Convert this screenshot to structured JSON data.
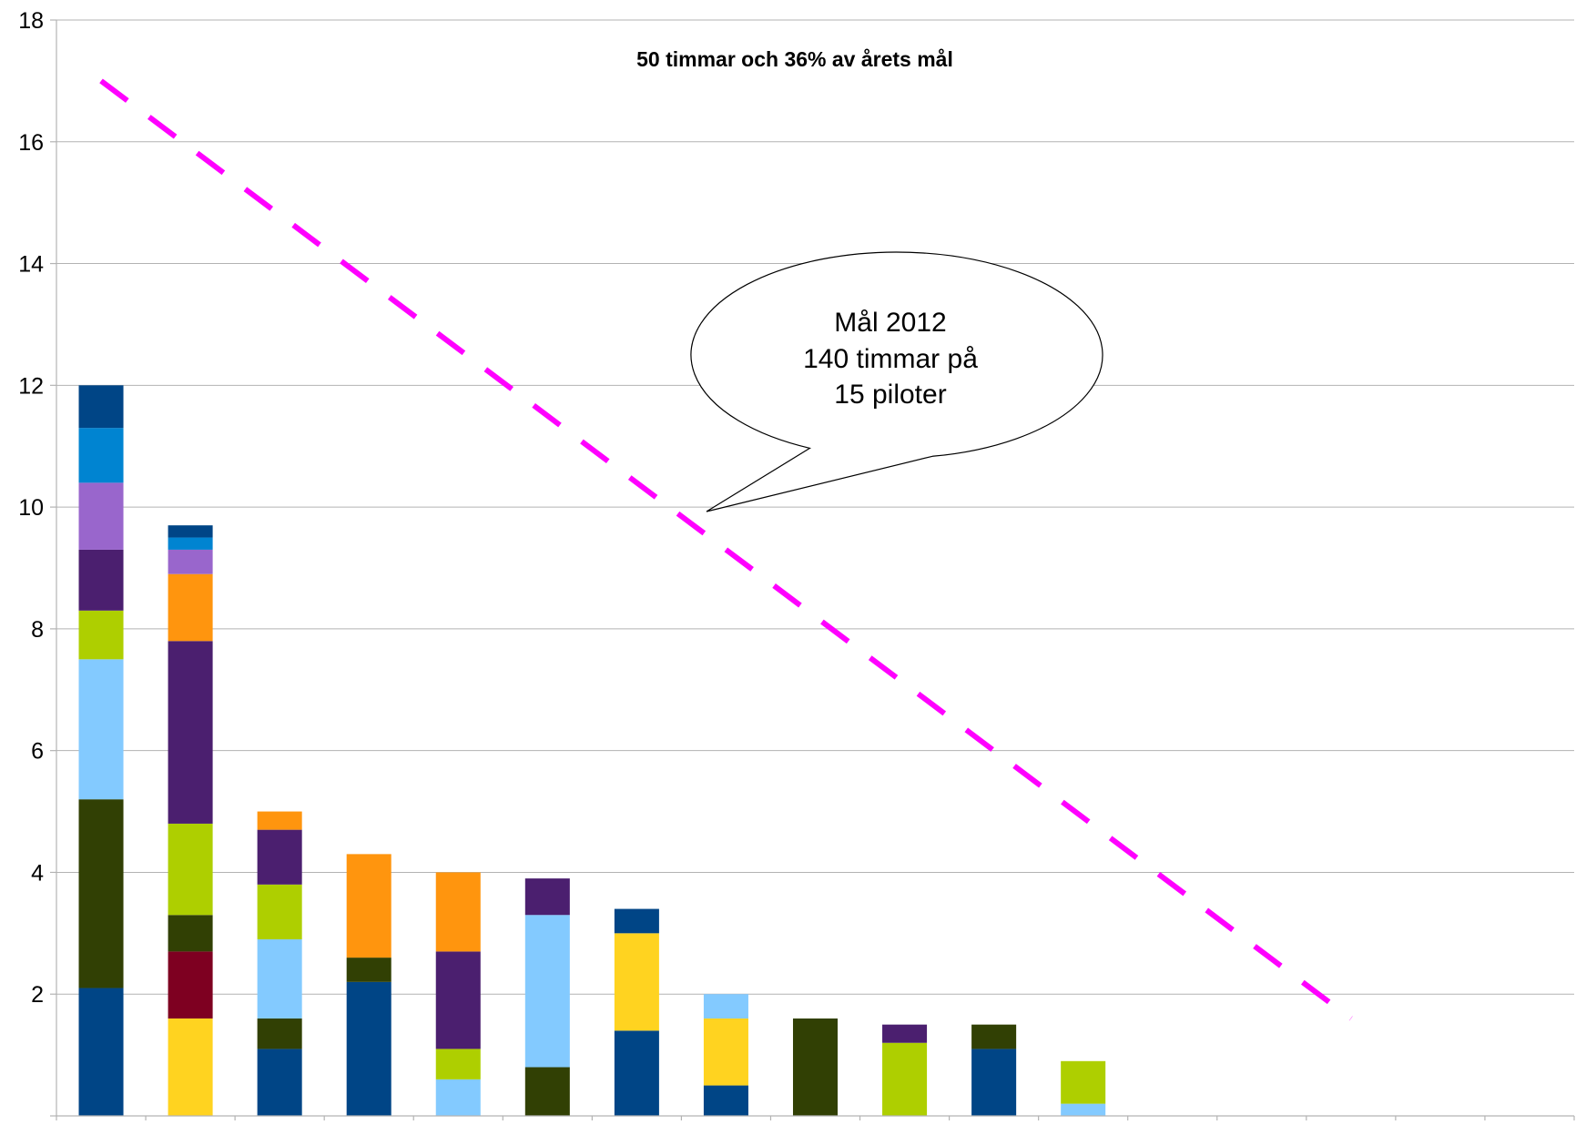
{
  "chart_data": {
    "type": "bar",
    "stacked": true,
    "title": "50 timmar och 36% av årets mål",
    "xlabel": "",
    "ylabel": "",
    "ylim": [
      0,
      18
    ],
    "yticks": [
      2,
      4,
      6,
      8,
      10,
      12,
      14,
      16,
      18
    ],
    "grid": true,
    "legend": "none",
    "category_count": 17,
    "bars": [
      {
        "total": 12.0,
        "segments": [
          {
            "value": 2.1,
            "color": "#004586"
          },
          {
            "value": 3.1,
            "color": "#314004"
          },
          {
            "value": 2.3,
            "color": "#83CAFF"
          },
          {
            "value": 0.8,
            "color": "#AECF00"
          },
          {
            "value": 1.0,
            "color": "#4B1F6F"
          },
          {
            "value": 1.1,
            "color": "#9966CC"
          },
          {
            "value": 0.9,
            "color": "#0084D1"
          },
          {
            "value": 0.7,
            "color": "#004586"
          }
        ]
      },
      {
        "total": 9.7,
        "segments": [
          {
            "value": 1.6,
            "color": "#FFD320"
          },
          {
            "value": 1.1,
            "color": "#7E0021"
          },
          {
            "value": 0.6,
            "color": "#314004"
          },
          {
            "value": 1.5,
            "color": "#AECF00"
          },
          {
            "value": 3.0,
            "color": "#4B1F6F"
          },
          {
            "value": 1.1,
            "color": "#FF950E"
          },
          {
            "value": 0.4,
            "color": "#9966CC"
          },
          {
            "value": 0.2,
            "color": "#0084D1"
          },
          {
            "value": 0.2,
            "color": "#004586"
          }
        ]
      },
      {
        "total": 5.0,
        "segments": [
          {
            "value": 1.1,
            "color": "#004586"
          },
          {
            "value": 0.5,
            "color": "#314004"
          },
          {
            "value": 1.3,
            "color": "#83CAFF"
          },
          {
            "value": 0.9,
            "color": "#AECF00"
          },
          {
            "value": 0.9,
            "color": "#4B1F6F"
          },
          {
            "value": 0.3,
            "color": "#FF950E"
          }
        ]
      },
      {
        "total": 4.3,
        "segments": [
          {
            "value": 2.2,
            "color": "#004586"
          },
          {
            "value": 0.4,
            "color": "#314004"
          },
          {
            "value": 1.7,
            "color": "#FF950E"
          }
        ]
      },
      {
        "total": 4.0,
        "segments": [
          {
            "value": 0.6,
            "color": "#83CAFF"
          },
          {
            "value": 0.5,
            "color": "#AECF00"
          },
          {
            "value": 1.6,
            "color": "#4B1F6F"
          },
          {
            "value": 1.3,
            "color": "#FF950E"
          }
        ]
      },
      {
        "total": 3.9,
        "segments": [
          {
            "value": 0.8,
            "color": "#314004"
          },
          {
            "value": 2.5,
            "color": "#83CAFF"
          },
          {
            "value": 0.6,
            "color": "#4B1F6F"
          }
        ]
      },
      {
        "total": 3.4,
        "segments": [
          {
            "value": 1.4,
            "color": "#004586"
          },
          {
            "value": 1.6,
            "color": "#FFD320"
          },
          {
            "value": 0.4,
            "color": "#004586"
          }
        ]
      },
      {
        "total": 2.0,
        "segments": [
          {
            "value": 0.5,
            "color": "#004586"
          },
          {
            "value": 1.1,
            "color": "#FFD320"
          },
          {
            "value": 0.4,
            "color": "#83CAFF"
          }
        ]
      },
      {
        "total": 1.6,
        "segments": [
          {
            "value": 1.6,
            "color": "#314004"
          }
        ]
      },
      {
        "total": 1.5,
        "segments": [
          {
            "value": 1.2,
            "color": "#AECF00"
          },
          {
            "value": 0.3,
            "color": "#4B1F6F"
          }
        ]
      },
      {
        "total": 1.5,
        "segments": [
          {
            "value": 1.1,
            "color": "#004586"
          },
          {
            "value": 0.4,
            "color": "#314004"
          }
        ]
      },
      {
        "total": 0.9,
        "segments": [
          {
            "value": 0.2,
            "color": "#83CAFF"
          },
          {
            "value": 0.7,
            "color": "#AECF00"
          }
        ]
      }
    ],
    "target_line": {
      "color": "#FF00FF",
      "style": "dashed",
      "start": {
        "x": 1,
        "y": 17.0
      },
      "end": {
        "x": 15,
        "y": 1.6
      }
    },
    "callout": {
      "lines": [
        "Mål 2012",
        "140 timmar på",
        "15 piloter"
      ]
    }
  }
}
